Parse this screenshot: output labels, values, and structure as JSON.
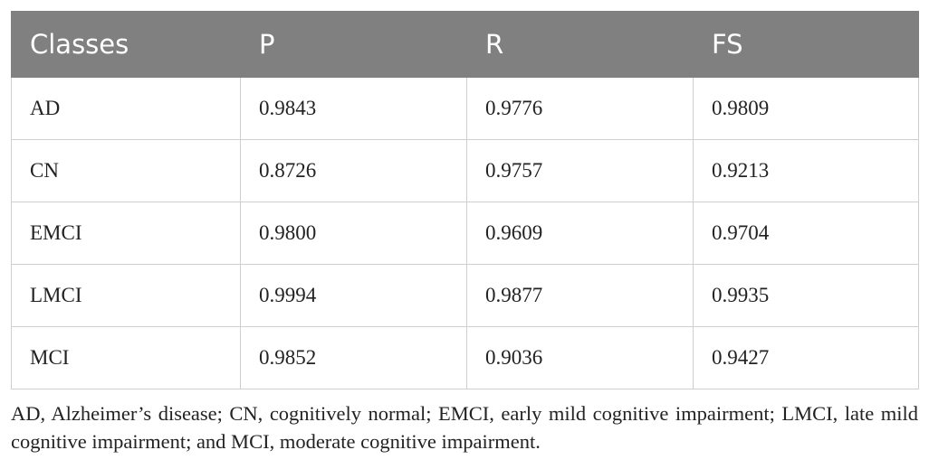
{
  "table": {
    "header": [
      "Classes",
      "P",
      "R",
      "FS"
    ],
    "rows": [
      [
        "AD",
        "0.9843",
        "0.9776",
        "0.9809"
      ],
      [
        "CN",
        "0.8726",
        "0.9757",
        "0.9213"
      ],
      [
        "EMCI",
        "0.9800",
        "0.9609",
        "0.9704"
      ],
      [
        "LMCI",
        "0.9994",
        "0.9877",
        "0.9935"
      ],
      [
        "MCI",
        "0.9852",
        "0.9036",
        "0.9427"
      ]
    ]
  },
  "footnote": "AD, Alzheimer’s disease; CN, cognitively normal; EMCI, early mild cognitive impairment; LMCI, late mild cognitive impairment; and MCI, moderate cognitive impairment."
}
